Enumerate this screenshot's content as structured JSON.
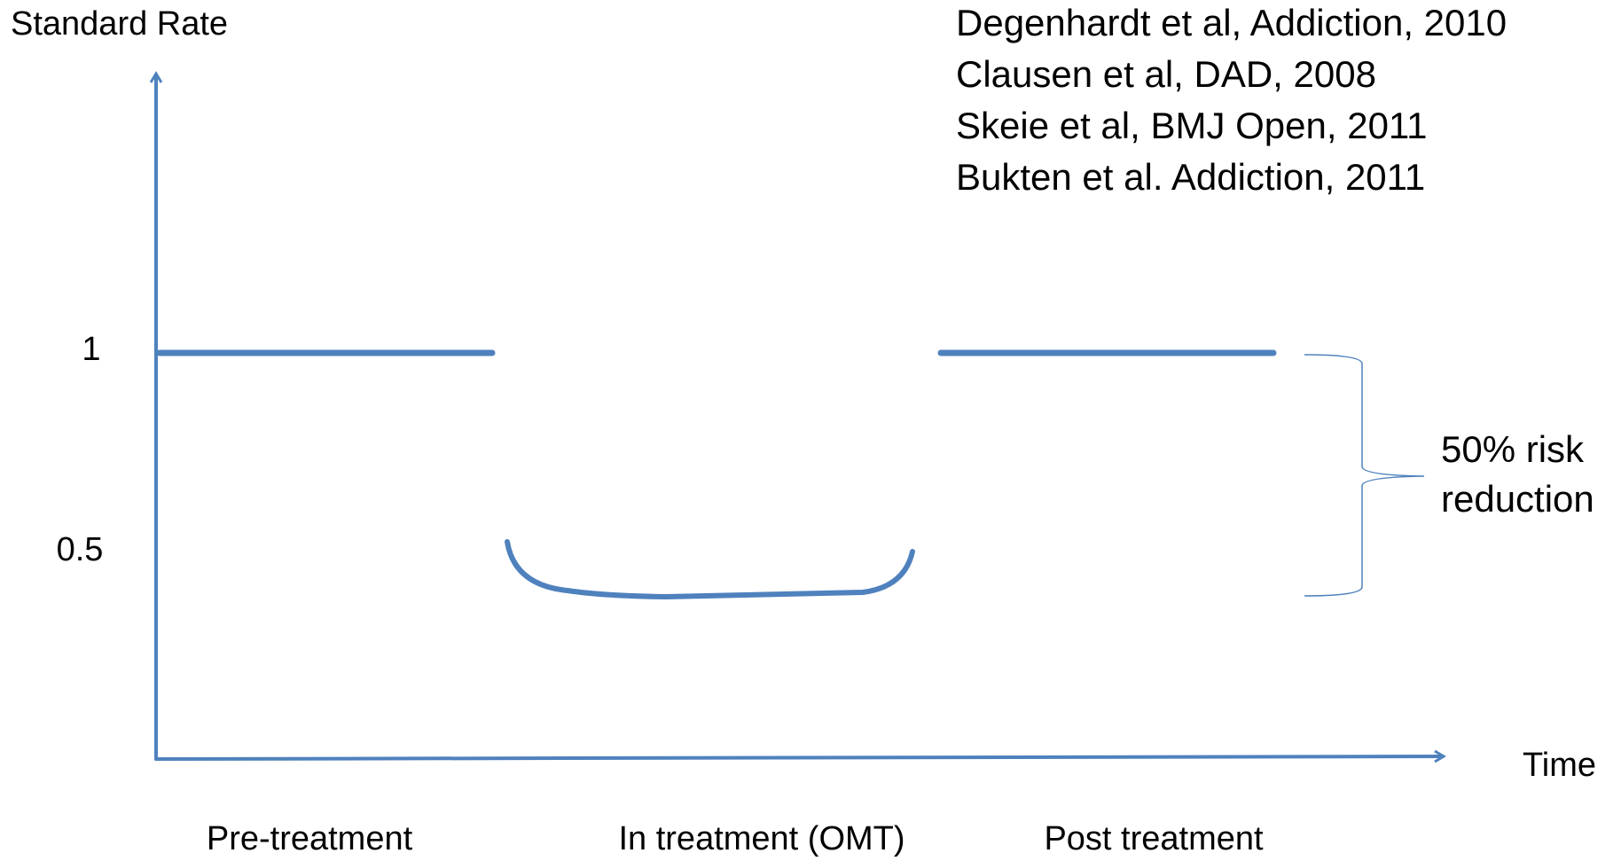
{
  "y_axis_label": "Standard Rate",
  "y_ticks": [
    1,
    0.5
  ],
  "x_axis_label": "Time",
  "phases": [
    "Pre-treatment",
    "In treatment (OMT)",
    "Post treatment"
  ],
  "references": [
    "Degenhardt et al, Addiction, 2010",
    "Clausen et al, DAD, 2008",
    "Skeie et al, BMJ Open, 2011",
    "Bukten et al. Addiction, 2011"
  ],
  "annotation": [
    "50% risk",
    "reduction"
  ]
}
